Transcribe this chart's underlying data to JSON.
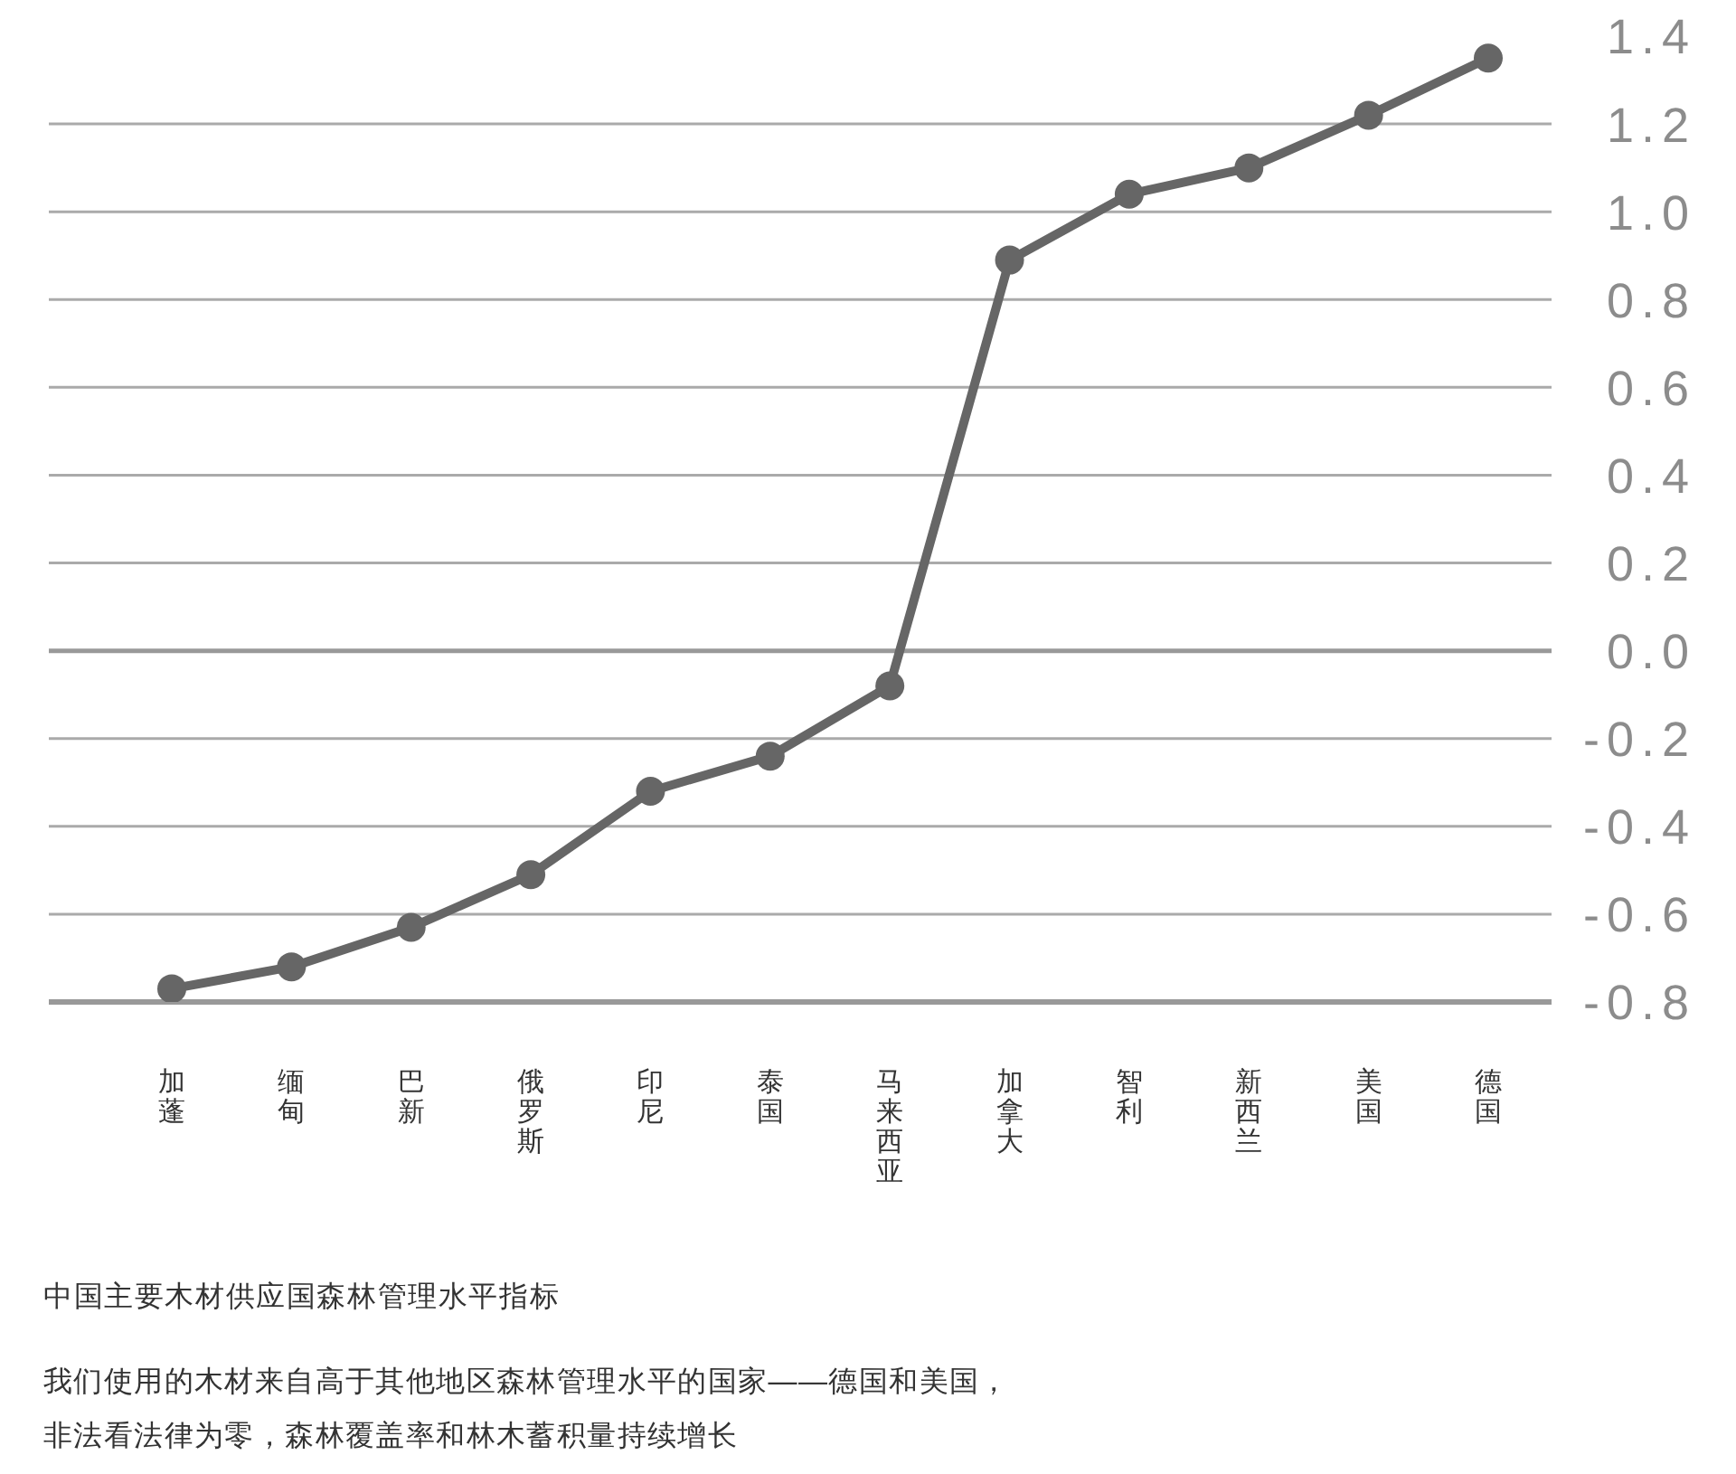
{
  "chart_data": {
    "type": "line",
    "title": "中国主要木材供应国森林管理水平指标",
    "subtitle": "我们使用的木材来自高于其他地区森林管理水平的国家——德国和美国，非法看法律为零，森林覆盖率和林木蓄积量持续增长",
    "categories": [
      "加蓬",
      "缅甸",
      "巴新",
      "俄罗斯",
      "印尼",
      "泰国",
      "马来西亚",
      "加拿大",
      "智利",
      "新西兰",
      "美国",
      "德国"
    ],
    "series": [
      {
        "color": "#666666",
        "values": [
          -0.77,
          -0.72,
          -0.63,
          -0.51,
          -0.32,
          -0.24,
          -0.08,
          0.89,
          1.04,
          1.1,
          1.22,
          1.35
        ]
      }
    ],
    "ylim": [
      -0.8,
      1.4
    ],
    "yticks": [
      -0.8,
      -0.6,
      -0.4,
      -0.2,
      {
        "value": 0,
        "label": "0.0"
      },
      0.2,
      0.4,
      0.6,
      0.8,
      {
        "value": 1,
        "label": "1.0"
      },
      1.2,
      1.4
    ],
    "grid": "y",
    "marker": "circle",
    "line_style": "solid",
    "ref_lines": [
      {
        "axis": "y",
        "value": 0,
        "color": "#999999"
      }
    ]
  }
}
